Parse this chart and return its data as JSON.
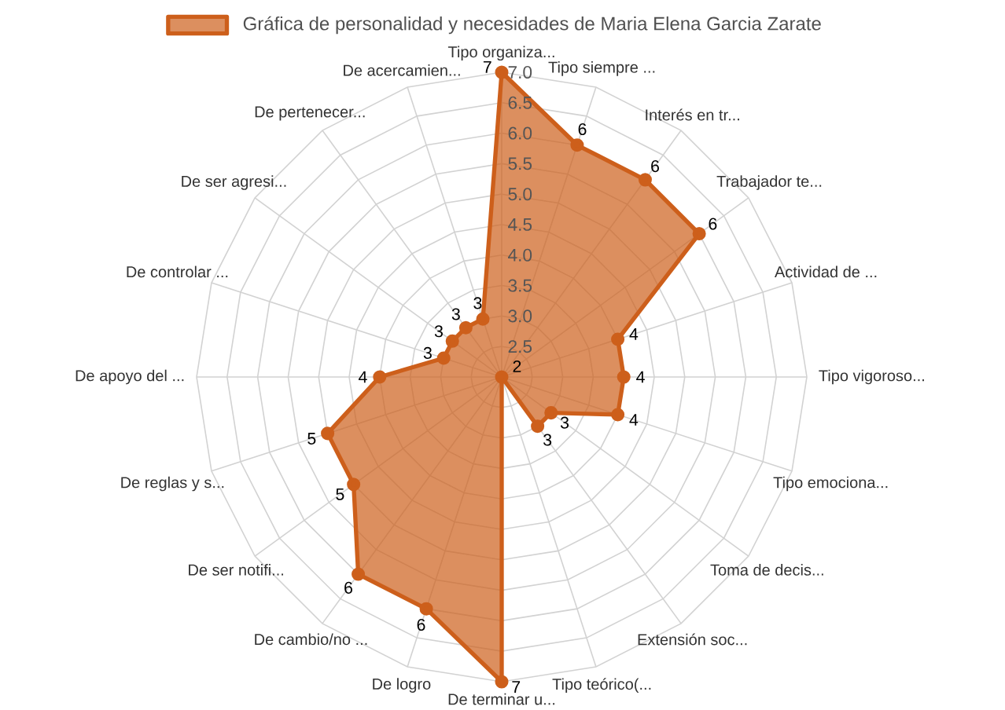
{
  "chart_data": {
    "type": "radar",
    "categories": [
      "Tipo organiza...",
      "Tipo siempre ...",
      "Interés en tr...",
      "Trabajador te...",
      "Actividad de ...",
      "Tipo vigoroso...",
      "Tipo emociona...",
      "Toma de decis...",
      "Extensión soc...",
      "Tipo teórico(...",
      "De terminar u...",
      "De logro",
      "De cambio/no ...",
      "De ser notifi...",
      "De reglas y s...",
      "De apoyo del ...",
      "De controlar ...",
      "De ser agresi...",
      "De pertenecer...",
      "De acercamien..."
    ],
    "series": [
      {
        "name": "Gráfica de personalidad y necesidades de Maria Elena Garcia Zarate",
        "color": "#cd5f1b",
        "values": [
          7,
          6,
          6,
          6,
          4,
          4,
          4,
          3,
          3,
          2,
          7,
          6,
          6,
          5,
          5,
          4,
          3,
          3,
          3,
          3
        ]
      }
    ],
    "ylim": [
      2,
      7
    ],
    "yticks": [
      2.5,
      {
        "value": 3,
        "label": "3.0"
      },
      3.5,
      {
        "value": 4,
        "label": "4.0"
      },
      4.5,
      {
        "value": 5,
        "label": "5.0"
      },
      5.5,
      {
        "value": 6,
        "label": "6.0"
      },
      6.5,
      {
        "value": 7,
        "label": "7.0"
      }
    ],
    "grid": true,
    "legend": "top",
    "marker": "circle",
    "line_style": "solid",
    "data_labels": true
  }
}
